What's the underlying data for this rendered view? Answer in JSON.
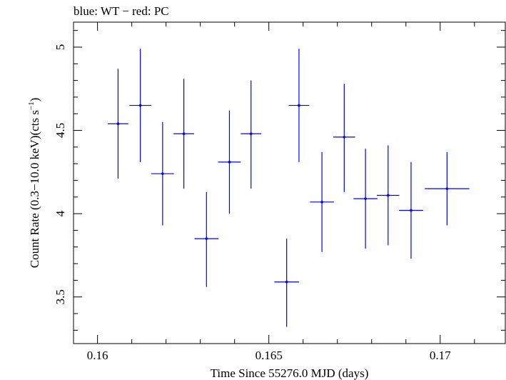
{
  "chart_data": {
    "type": "scatter",
    "title": "blue: WT − red: PC",
    "xlabel": "Time Since 55276.0 MJD (days)",
    "ylabel_main": "Count Rate (0.3−10.0 keV)(cts s",
    "ylabel_sup": "−1",
    "ylabel_close": ")",
    "xlim": [
      0.1593,
      0.1719
    ],
    "ylim": [
      3.22,
      5.15
    ],
    "x_ticks": [
      0.16,
      0.165,
      0.17
    ],
    "x_tick_labels": [
      "0.16",
      "0.165",
      "0.17"
    ],
    "y_ticks": [
      3.5,
      4,
      4.5,
      5
    ],
    "y_tick_labels": [
      "3.5",
      "4",
      "4.5",
      "5"
    ],
    "grid": false,
    "series": [
      {
        "color": "#0000ff",
        "points": [
          {
            "x": 0.1606,
            "xerr": 0.0003,
            "y": 4.54,
            "yerr_lo": 0.33,
            "yerr_hi": 0.33
          },
          {
            "x": 0.16125,
            "xerr": 0.00032,
            "y": 4.65,
            "yerr_lo": 0.34,
            "yerr_hi": 0.34
          },
          {
            "x": 0.1619,
            "xerr": 0.00033,
            "y": 4.24,
            "yerr_lo": 0.31,
            "yerr_hi": 0.31
          },
          {
            "x": 0.16252,
            "xerr": 0.0003,
            "y": 4.48,
            "yerr_lo": 0.33,
            "yerr_hi": 0.33
          },
          {
            "x": 0.16318,
            "xerr": 0.00035,
            "y": 3.85,
            "yerr_lo": 0.29,
            "yerr_hi": 0.28
          },
          {
            "x": 0.16385,
            "xerr": 0.00033,
            "y": 4.31,
            "yerr_lo": 0.31,
            "yerr_hi": 0.31
          },
          {
            "x": 0.16448,
            "xerr": 0.0003,
            "y": 4.48,
            "yerr_lo": 0.33,
            "yerr_hi": 0.32
          },
          {
            "x": 0.16552,
            "xerr": 0.00036,
            "y": 3.59,
            "yerr_lo": 0.27,
            "yerr_hi": 0.26
          },
          {
            "x": 0.16588,
            "xerr": 0.0003,
            "y": 4.65,
            "yerr_lo": 0.34,
            "yerr_hi": 0.34
          },
          {
            "x": 0.16655,
            "xerr": 0.00035,
            "y": 4.07,
            "yerr_lo": 0.3,
            "yerr_hi": 0.3
          },
          {
            "x": 0.1672,
            "xerr": 0.00032,
            "y": 4.46,
            "yerr_lo": 0.33,
            "yerr_hi": 0.32
          },
          {
            "x": 0.16782,
            "xerr": 0.00035,
            "y": 4.09,
            "yerr_lo": 0.3,
            "yerr_hi": 0.3
          },
          {
            "x": 0.16848,
            "xerr": 0.00033,
            "y": 4.11,
            "yerr_lo": 0.3,
            "yerr_hi": 0.3
          },
          {
            "x": 0.16915,
            "xerr": 0.00035,
            "y": 4.02,
            "yerr_lo": 0.29,
            "yerr_hi": 0.29
          },
          {
            "x": 0.1702,
            "xerr": 0.00065,
            "y": 4.15,
            "yerr_lo": 0.22,
            "yerr_hi": 0.22
          }
        ]
      }
    ]
  }
}
